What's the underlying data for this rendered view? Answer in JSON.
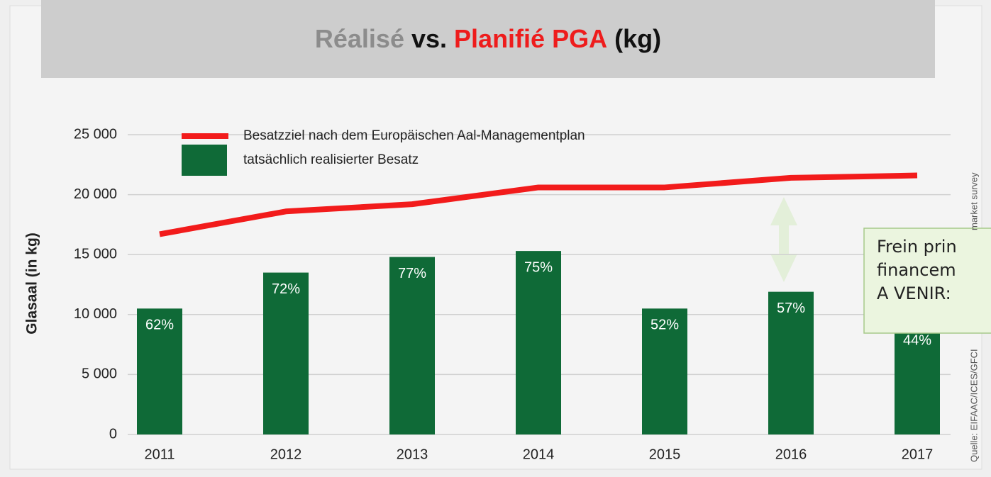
{
  "chart_data": {
    "type": "bar_line",
    "title_parts": [
      {
        "text": "Réalisé",
        "color": "#8c8c8c"
      },
      {
        "text": "vs.",
        "color": "#111111"
      },
      {
        "text": "Planifié PGA",
        "color": "#ee1c1c"
      },
      {
        "text": "(kg)",
        "color": "#111111"
      }
    ],
    "y_label": "Glasaal (in kg)",
    "categories": [
      "2011",
      "2012",
      "2013",
      "2014",
      "2015",
      "2016",
      "2017"
    ],
    "series": [
      {
        "name": "Besatzziel nach dem Europäischen Aal-Managementplan",
        "kind": "line",
        "color": "#f21b1b",
        "values": [
          16700,
          18600,
          19200,
          20600,
          20600,
          21400,
          21600
        ]
      },
      {
        "name": "tatsächlich realisierter Besatz",
        "kind": "bar",
        "color": "#0f6a37",
        "values": [
          10500,
          13500,
          14800,
          15300,
          10500,
          11900,
          9200
        ],
        "bar_labels": [
          "62%",
          "72%",
          "77%",
          "75%",
          "52%",
          "57%",
          "44%"
        ]
      }
    ],
    "ylim": [
      0,
      25000
    ],
    "yticks": [
      {
        "value": 0,
        "label": "0"
      },
      {
        "value": 5000,
        "label": "5 000"
      },
      {
        "value": 10000,
        "label": "10 000"
      },
      {
        "value": 15000,
        "label": "15 000"
      },
      {
        "value": 20000,
        "label": "20 000"
      },
      {
        "value": 25000,
        "label": "25 000"
      }
    ],
    "grid": true,
    "annotation_lines": [
      "Frein prin",
      "financem",
      "A VENIR:"
    ],
    "source_parts": [
      "Quelle: EIFAAC/ICES/GFCI",
      "market survey"
    ]
  }
}
